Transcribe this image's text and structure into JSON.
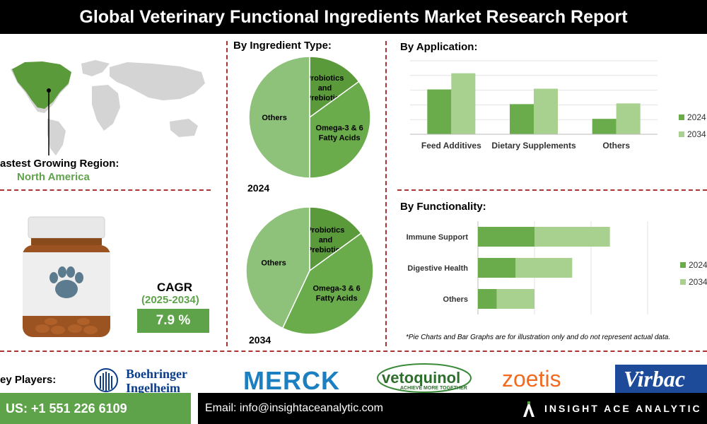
{
  "title": "Global Veterinary Functional Ingredients Market Research Report",
  "region": {
    "label": "astest Growing Region:",
    "value": "North America"
  },
  "cagr": {
    "label": "CAGR",
    "years": "(2025-2034)",
    "value": "7.9 %"
  },
  "pie_section_title": "By Ingredient Type:",
  "pie_2024_label": "2024",
  "pie_2034_label": "2034",
  "disclaimer": "*Pie Charts and Bar Graphs are for illustration only and do not represent actual data.",
  "key_players": {
    "label": "ey Players:",
    "logos": [
      "Boehringer",
      "Ingelheim",
      "MERCK",
      "vetoquinol",
      "ACHIEVE MORE TOGETHER",
      "zoetis",
      "Virbac"
    ]
  },
  "footer": {
    "phone": "US: +1 551 226 6109",
    "email": "Email: info@insightaceanalytic.com",
    "brand": "INSIGHT ACE ANALYTIC"
  },
  "colors": {
    "dark_green": "#5a9a3a",
    "mid_green": "#6aab4b",
    "light_green": "#8ec17a",
    "pale_green": "#a8d08f"
  },
  "chart_data": [
    {
      "type": "pie",
      "title": "By Ingredient Type:",
      "year": "2024",
      "slices": [
        {
          "label": "Probiotics and Prebiotics",
          "value": 15
        },
        {
          "label": "Omega-3 & 6 Fatty Acids",
          "value": 35
        },
        {
          "label": "Others",
          "value": 50
        }
      ]
    },
    {
      "type": "pie",
      "title": "By Ingredient Type:",
      "year": "2034",
      "slices": [
        {
          "label": "Probiotics and Prebiotics",
          "value": 15
        },
        {
          "label": "Omega-3 & 6 Fatty Acids",
          "value": 42
        },
        {
          "label": "Others",
          "value": 43
        }
      ]
    },
    {
      "type": "bar",
      "title": "By Application:",
      "categories": [
        "Feed Additives",
        "Dietary Supplements",
        "Others"
      ],
      "series": [
        {
          "name": "2024",
          "values": [
            61,
            41,
            21
          ]
        },
        {
          "name": "2034",
          "values": [
            83,
            62,
            42
          ]
        }
      ],
      "ylim": [
        0,
        100
      ],
      "legend": "right"
    },
    {
      "type": "bar",
      "orientation": "horizontal",
      "stacked": true,
      "title": "By Functionality:",
      "categories": [
        "Immune Support",
        "Digestive Health",
        "Others"
      ],
      "series": [
        {
          "name": "2024",
          "values": [
            30,
            20,
            10
          ]
        },
        {
          "name": "2034",
          "values": [
            40,
            30,
            20
          ]
        }
      ],
      "xlim": [
        0,
        90
      ],
      "legend": "right"
    }
  ]
}
